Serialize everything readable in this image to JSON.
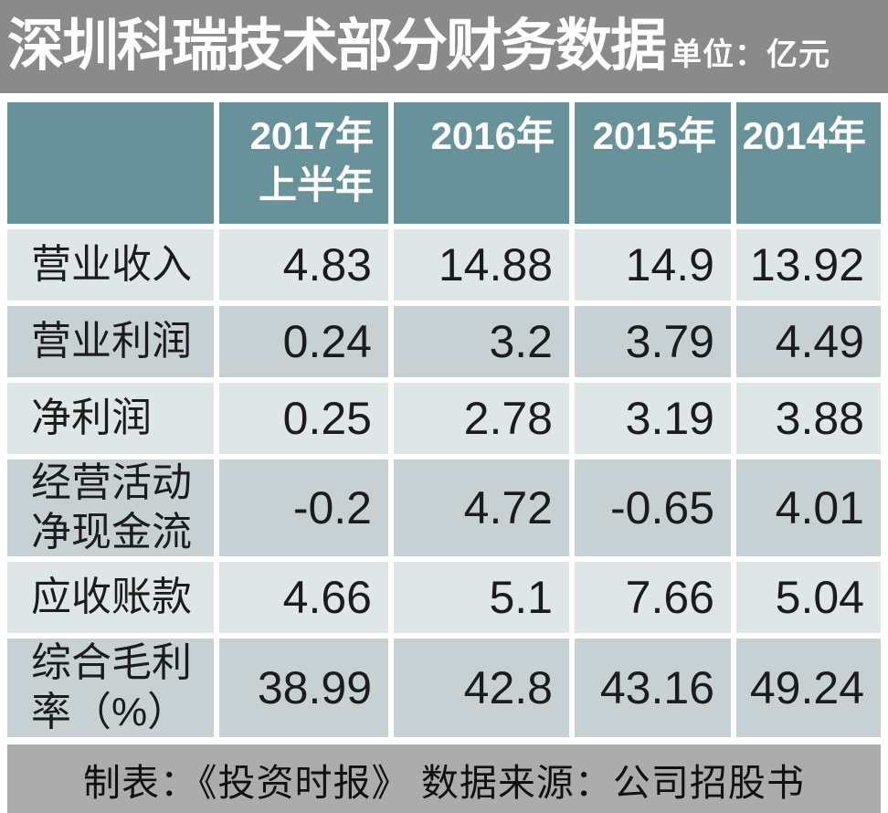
{
  "header": {
    "title": "深圳科瑞技术部分财务数据",
    "unit_label": "单位：亿元"
  },
  "chart_data": {
    "type": "table",
    "title": "深圳科瑞技术部分财务数据",
    "unit": "亿元",
    "columns": [
      "2017年\n上半年",
      "2016年",
      "2015年",
      "2014年"
    ],
    "rows": [
      {
        "label": "营业收入",
        "values": [
          "4.83",
          "14.88",
          "14.9",
          "13.92"
        ]
      },
      {
        "label": "营业利润",
        "values": [
          "0.24",
          "3.2",
          "3.79",
          "4.49"
        ]
      },
      {
        "label": "净利润",
        "values": [
          "0.25",
          "2.78",
          "3.19",
          "3.88"
        ]
      },
      {
        "label": "经营活动\n净现金流",
        "values": [
          "-0.2",
          "4.72",
          "-0.65",
          "4.01"
        ]
      },
      {
        "label": "应收账款",
        "values": [
          "4.66",
          "5.1",
          "7.66",
          "5.04"
        ]
      },
      {
        "label": "综合毛利\n率（%）",
        "values": [
          "38.99",
          "42.8",
          "43.16",
          "49.24"
        ]
      }
    ]
  },
  "footer": {
    "text": "制表：《投资时报》 数据来源：公司招股书"
  },
  "colors": {
    "topbar_bg": "#8a8a8a",
    "header_teal": "#68929a",
    "row_light": "#dfe6e8",
    "row_dark": "#c7d1d3",
    "footer_bg": "#acacac",
    "text_on_dark": "#ffffff",
    "text_on_light": "#1c1c1c"
  }
}
